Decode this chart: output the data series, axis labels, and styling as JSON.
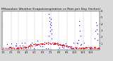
{
  "title": "Milwaukee Weather Evapotranspiration vs Rain per Day (Inches)",
  "title_fontsize": 3.2,
  "background_color": "#d8d8d8",
  "plot_bg_color": "#ffffff",
  "ylim": [
    0,
    0.6
  ],
  "ytick_vals": [
    0.1,
    0.2,
    0.3,
    0.4,
    0.5,
    0.6
  ],
  "ytick_labels": [
    ".1",
    ".2",
    ".3",
    ".4",
    ".5",
    ".6"
  ],
  "grid_color": "#888888",
  "et_color": "red",
  "rain_color": "blue",
  "marker_size": 0.8,
  "tick_fontsize": 2.5,
  "month_starts": [
    0,
    31,
    59,
    90,
    120,
    151,
    181,
    212,
    243,
    273,
    304,
    334
  ],
  "month_labels": [
    "1/1",
    "2/1",
    "3/1",
    "4/1",
    "5/1",
    "6/1",
    "7/1",
    "8/1",
    "9/1",
    "10/1",
    "11/1",
    "12/1"
  ]
}
